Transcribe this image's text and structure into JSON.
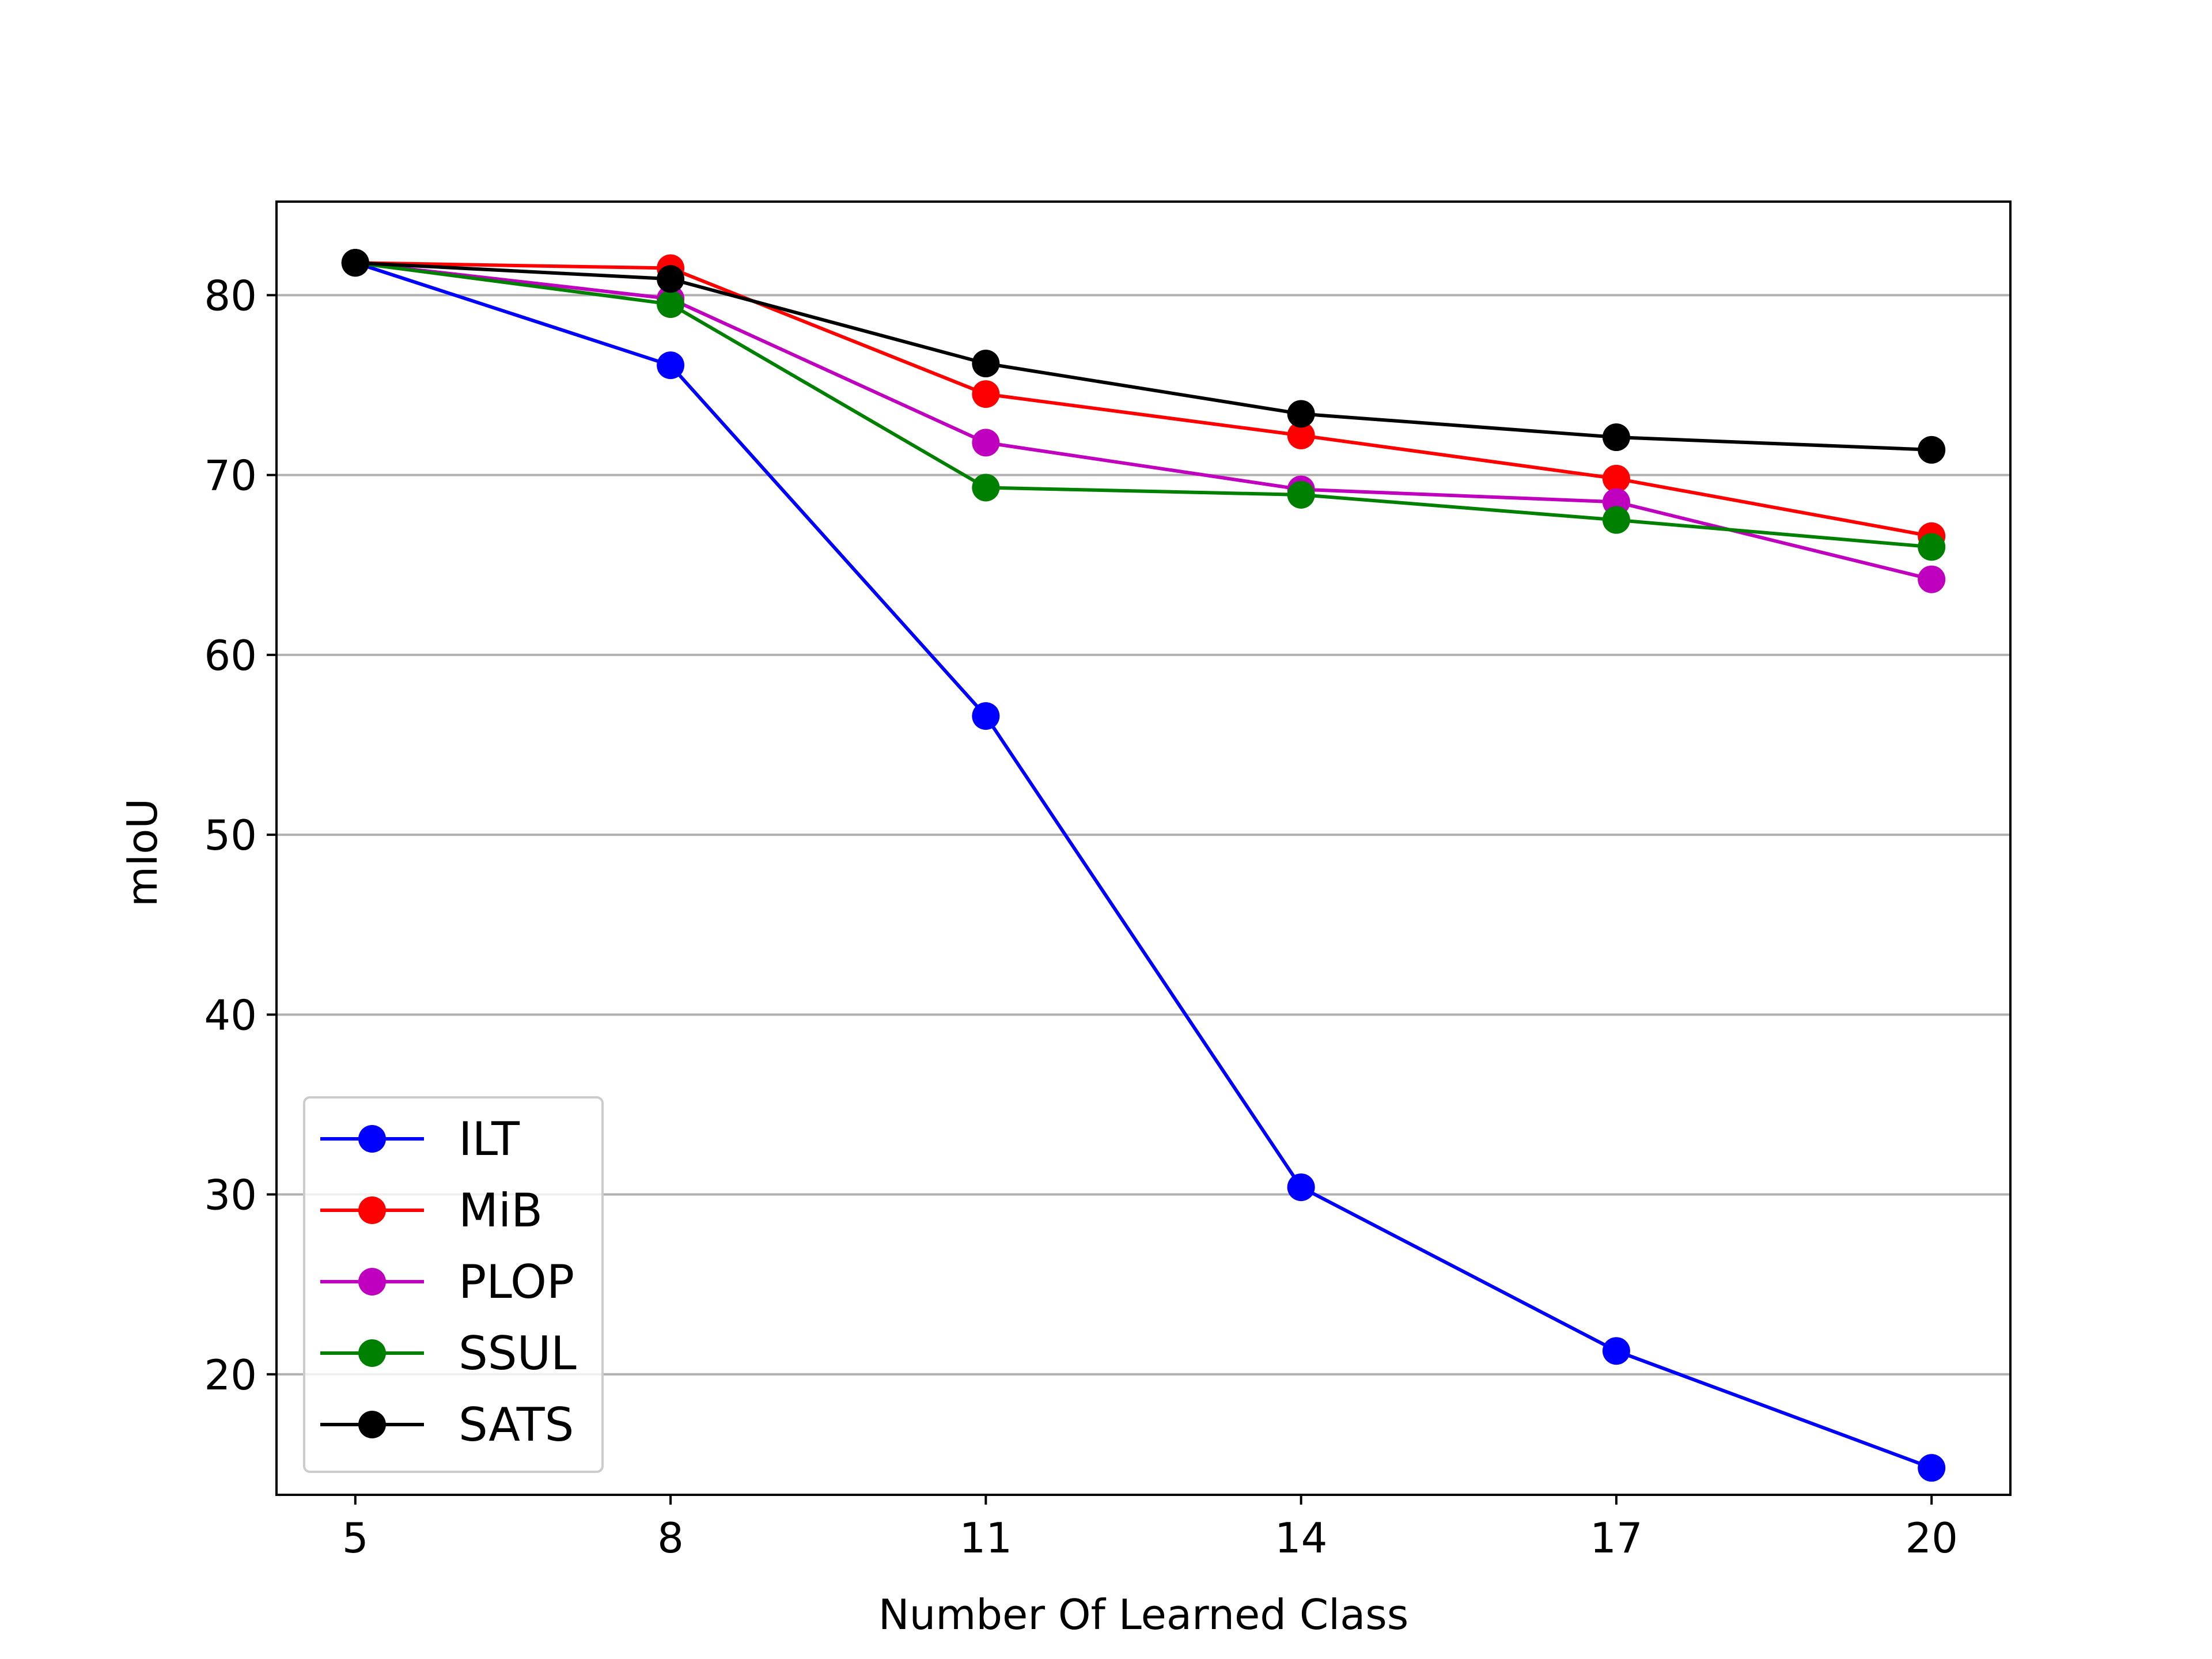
{
  "chart_data": {
    "type": "line",
    "title": "",
    "xlabel": "Number Of Learned Class",
    "ylabel": "mIoU",
    "x": [
      5,
      8,
      11,
      14,
      17,
      20
    ],
    "xticks": [
      "5",
      "8",
      "11",
      "14",
      "17",
      "20"
    ],
    "yticks": [
      "20",
      "30",
      "40",
      "50",
      "60",
      "70",
      "80"
    ],
    "ytick_values": [
      20,
      30,
      40,
      50,
      60,
      70,
      80
    ],
    "xlim": [
      4.25,
      20.75
    ],
    "ylim": [
      13.3,
      85.2
    ],
    "grid": "horizontal",
    "legend_position": "lower-left",
    "series": [
      {
        "name": "ILT",
        "color": "#0000ff",
        "values": [
          81.8,
          76.1,
          56.6,
          30.4,
          21.3,
          14.8
        ]
      },
      {
        "name": "MiB",
        "color": "#ff0000",
        "values": [
          81.8,
          81.5,
          74.5,
          72.2,
          69.8,
          66.6
        ]
      },
      {
        "name": "PLOP",
        "color": "#bf00bf",
        "values": [
          81.8,
          79.8,
          71.8,
          69.2,
          68.5,
          64.2
        ]
      },
      {
        "name": "SSUL",
        "color": "#008000",
        "values": [
          81.8,
          79.5,
          69.3,
          68.9,
          67.5,
          66.0
        ]
      },
      {
        "name": "SATS",
        "color": "#000000",
        "values": [
          81.8,
          80.9,
          76.2,
          73.4,
          72.1,
          71.4
        ]
      }
    ]
  }
}
